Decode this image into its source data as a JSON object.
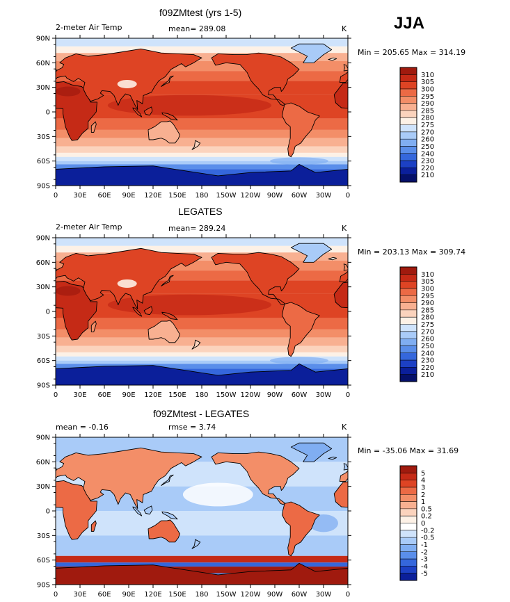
{
  "season": "JJA",
  "units": "K",
  "variable": "2-meter Air Temp",
  "lat_ticks": [
    "90N",
    "60N",
    "30N",
    "0",
    "30S",
    "60S",
    "90S"
  ],
  "lon_ticks": [
    "0",
    "30E",
    "60E",
    "90E",
    "120E",
    "150E",
    "180",
    "150W",
    "120W",
    "90W",
    "60W",
    "30W",
    "0"
  ],
  "chart_data": [
    {
      "type": "heatmap",
      "title": "f09ZMtest (yrs 1-5)",
      "subtitle_left": "2-meter Air Temp",
      "subtitle_center": "mean= 289.08",
      "units": "K",
      "stats": "Min = 205.65 Max = 314.19",
      "mean": 289.08,
      "min": 205.65,
      "max": 314.19,
      "colorbar": {
        "levels": [
          "310",
          "305",
          "300",
          "295",
          "290",
          "285",
          "280",
          "275",
          "270",
          "260",
          "250",
          "240",
          "230",
          "220",
          "210"
        ],
        "colors": [
          "#a01a0e",
          "#c52a16",
          "#de4424",
          "#ec6a45",
          "#f38e68",
          "#f8b091",
          "#fbd3bd",
          "#fdf1e6",
          "#cfe3fb",
          "#a9cbf8",
          "#80aef2",
          "#5a8eea",
          "#3567dc",
          "#1c40c4",
          "#0b1f9a",
          "#051069"
        ]
      }
    },
    {
      "type": "heatmap",
      "title": "LEGATES",
      "subtitle_left": "2-meter Air Temp",
      "subtitle_center": "mean= 289.24",
      "units": "K",
      "stats": "Min = 203.13 Max = 309.74",
      "mean": 289.24,
      "min": 203.13,
      "max": 309.74,
      "colorbar": {
        "levels": [
          "310",
          "305",
          "300",
          "295",
          "290",
          "285",
          "280",
          "275",
          "270",
          "260",
          "250",
          "240",
          "230",
          "220",
          "210"
        ],
        "colors": [
          "#a01a0e",
          "#c52a16",
          "#de4424",
          "#ec6a45",
          "#f38e68",
          "#f8b091",
          "#fbd3bd",
          "#fdf1e6",
          "#cfe3fb",
          "#a9cbf8",
          "#80aef2",
          "#5a8eea",
          "#3567dc",
          "#1c40c4",
          "#0b1f9a",
          "#051069"
        ]
      }
    },
    {
      "type": "heatmap",
      "title": "f09ZMtest - LEGATES",
      "subtitle_left": "mean =   -0.16",
      "subtitle_center": "rmse =    3.74",
      "units": "K",
      "stats": "Min = -35.06 Max =  31.69",
      "mean": -0.16,
      "rmse": 3.74,
      "min": -35.06,
      "max": 31.69,
      "colorbar": {
        "levels": [
          "5",
          "4",
          "3",
          "2",
          "1",
          "0.5",
          "0.2",
          "0",
          "-0.2",
          "-0.5",
          "-1",
          "-2",
          "-3",
          "-4",
          "-5"
        ],
        "colors": [
          "#a01a0e",
          "#c52a16",
          "#de4424",
          "#ec6a45",
          "#f38e68",
          "#f8b091",
          "#fbd3bd",
          "#fdf1e6",
          "#ffffff",
          "#cfe3fb",
          "#a9cbf8",
          "#80aef2",
          "#5a8eea",
          "#3567dc",
          "#1c40c4",
          "#0b1f9a"
        ]
      }
    }
  ]
}
